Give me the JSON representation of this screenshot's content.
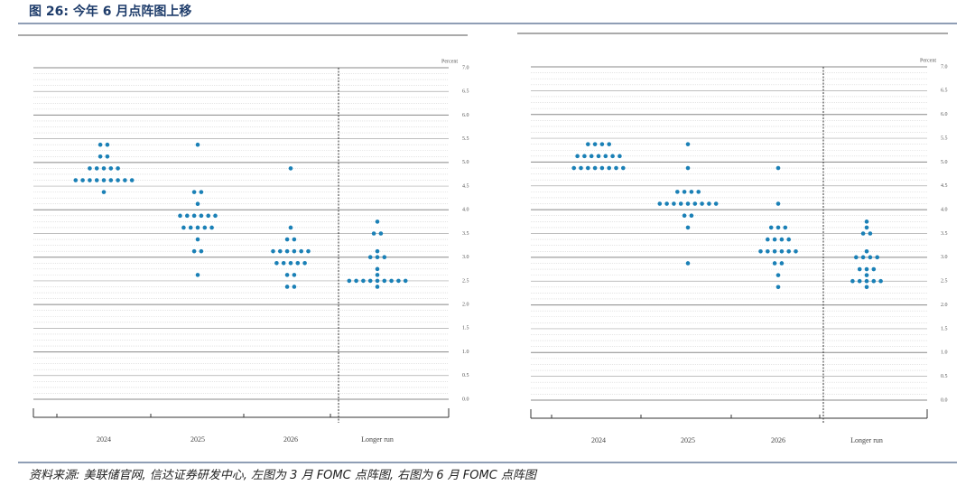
{
  "figure_title": "图 26: 今年 6 月点阵图上移",
  "source": "资料来源: 美联储官网, 信达证券研发中心, 左图为 3 月 FOMC 点阵图, 右图为 6 月 FOMC 点阵图",
  "chart_data": [
    {
      "type": "dotplot",
      "axis_label": "Percent",
      "color": "#1a80b6",
      "categories": [
        "2024",
        "2025",
        "2026",
        "Longer run"
      ],
      "rates": [
        [
          5.375,
          5.125,
          4.875,
          4.625,
          4.375
        ],
        [
          5.375,
          4.375,
          4.125,
          3.875,
          3.625,
          3.375,
          3.125,
          2.625
        ],
        [
          4.875,
          3.625,
          3.375,
          3.125,
          2.875,
          2.625,
          2.375
        ],
        [
          3.75,
          3.5,
          3.125,
          3.0,
          2.75,
          2.625,
          2.5,
          2.375
        ]
      ],
      "counts": [
        [
          2,
          2,
          5,
          9,
          1
        ],
        [
          1,
          2,
          1,
          6,
          5,
          1,
          2,
          1
        ],
        [
          1,
          1,
          2,
          6,
          5,
          2,
          2
        ],
        [
          1,
          2,
          1,
          3,
          1,
          1,
          9,
          1
        ]
      ],
      "ylim": [
        0,
        7
      ],
      "yticks": [
        {
          "value": 0,
          "label": "0.0"
        },
        {
          "value": 0.5,
          "label": "0.5"
        },
        {
          "value": 1,
          "label": "1.0"
        },
        {
          "value": 1.5,
          "label": "1.5"
        },
        {
          "value": 2,
          "label": "2.0"
        },
        {
          "value": 2.5,
          "label": "2.5"
        },
        {
          "value": 3,
          "label": "3.0"
        },
        {
          "value": 3.5,
          "label": "3.5"
        },
        {
          "value": 4,
          "label": "4.0"
        },
        {
          "value": 4.5,
          "label": "4.5"
        },
        {
          "value": 5,
          "label": "5.0"
        },
        {
          "value": 5.5,
          "label": "5.5"
        },
        {
          "value": 6,
          "label": "6.0"
        },
        {
          "value": 6.5,
          "label": "6.5"
        },
        {
          "value": 7,
          "label": "7.0"
        }
      ]
    },
    {
      "type": "dotplot",
      "axis_label": "Percent",
      "color": "#1a80b6",
      "categories": [
        "2024",
        "2025",
        "2026",
        "Longer run"
      ],
      "rates": [
        [
          5.375,
          5.125,
          4.875
        ],
        [
          5.375,
          4.875,
          4.375,
          4.125,
          3.875,
          3.625,
          2.875
        ],
        [
          4.875,
          4.125,
          3.625,
          3.375,
          3.125,
          2.875,
          2.625,
          2.375
        ],
        [
          3.75,
          3.625,
          3.5,
          3.125,
          3.0,
          2.75,
          2.625,
          2.5,
          2.375
        ]
      ],
      "counts": [
        [
          4,
          7,
          8
        ],
        [
          1,
          1,
          4,
          9,
          2,
          1,
          1
        ],
        [
          1,
          1,
          3,
          4,
          6,
          2,
          1,
          1
        ],
        [
          1,
          1,
          2,
          1,
          4,
          3,
          1,
          5,
          1
        ]
      ],
      "ylim": [
        0,
        7
      ],
      "yticks": [
        {
          "value": 0,
          "label": "0.0"
        },
        {
          "value": 0.5,
          "label": "0.5"
        },
        {
          "value": 1,
          "label": "1.0"
        },
        {
          "value": 1.5,
          "label": "1.5"
        },
        {
          "value": 2,
          "label": "2.0"
        },
        {
          "value": 2.5,
          "label": "2.5"
        },
        {
          "value": 3,
          "label": "3.0"
        },
        {
          "value": 3.5,
          "label": "3.5"
        },
        {
          "value": 4,
          "label": "4.0"
        },
        {
          "value": 4.5,
          "label": "4.5"
        },
        {
          "value": 5,
          "label": "5.0"
        },
        {
          "value": 5.5,
          "label": "5.5"
        },
        {
          "value": 6,
          "label": "6.0"
        },
        {
          "value": 6.5,
          "label": "6.5"
        },
        {
          "value": 7,
          "label": "7.0"
        }
      ]
    }
  ]
}
